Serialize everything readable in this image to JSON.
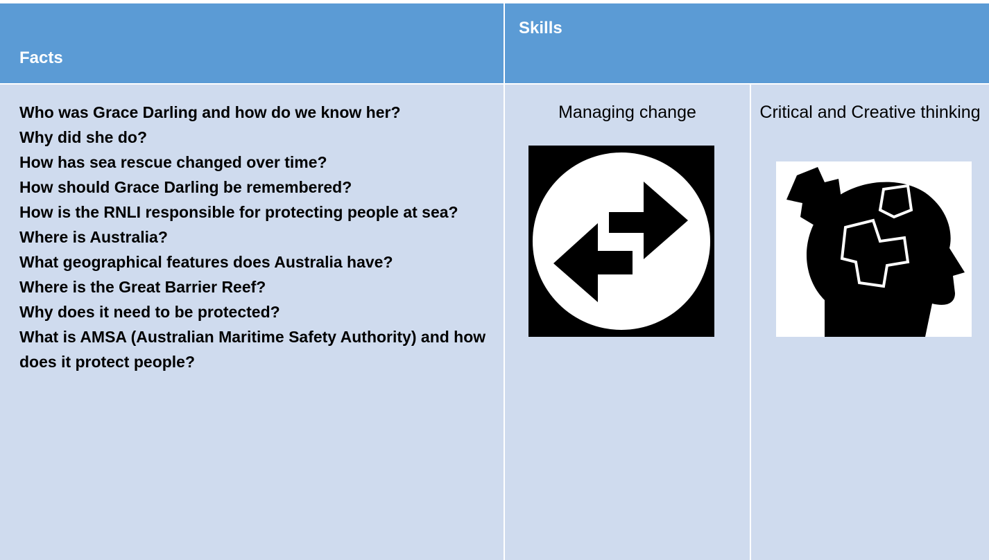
{
  "header": {
    "facts": "Facts",
    "skills": "Skills"
  },
  "facts": [
    "Who was Grace Darling and how do we know her?",
    "Why did she do?",
    "How has sea rescue changed over time?",
    "How should Grace Darling be remembered?",
    "How is the RNLI responsible for protecting people at sea?",
    "Where is Australia?",
    "What geographical features does Australia have?",
    "Where is the Great Barrier Reef?",
    "Why does it need to be protected?",
    "What is AMSA (Australian Maritime Safety Authority) and how does it protect people?"
  ],
  "skills": [
    "Managing change",
    "Critical and Creative thinking"
  ]
}
